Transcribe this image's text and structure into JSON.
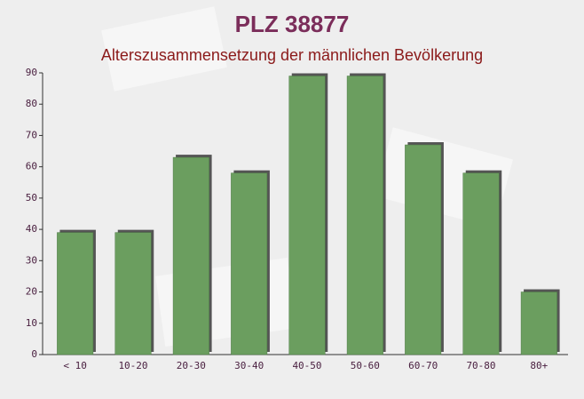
{
  "chart_data": {
    "type": "bar",
    "title": "PLZ 38877",
    "subtitle": "Alterszusammensetzung der männlichen Bevölkerung",
    "categories": [
      "< 10",
      "10-20",
      "20-30",
      "30-40",
      "40-50",
      "50-60",
      "60-70",
      "70-80",
      "80+"
    ],
    "values": [
      39,
      39,
      63,
      58,
      89,
      89,
      67,
      58,
      20
    ],
    "color": "#6b9e5f",
    "ylim": [
      0,
      90
    ],
    "yticks": [
      0,
      10,
      20,
      30,
      40,
      50,
      60,
      70,
      80,
      90
    ],
    "grid": false
  }
}
